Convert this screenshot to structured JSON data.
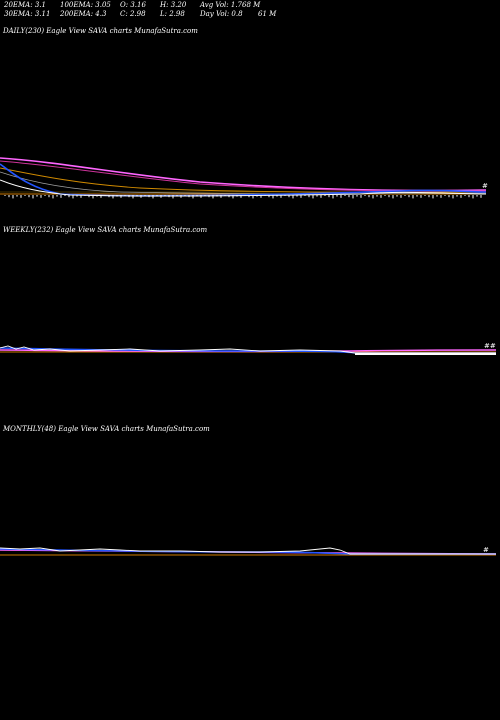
{
  "header": {
    "ema20": "20EMA: 3.1",
    "ema100": "100EMA: 3.05",
    "open": "O: 3.16",
    "high": "H: 3.20",
    "avg_vol": "Avg Vol: 1.768  M",
    "ema30": "30EMA: 3.11",
    "ema200": "200EMA: 4.3",
    "close": "C: 2.98",
    "low": "L: 2.98",
    "day_vol": "Day Vol: 0.8",
    "day_vol_unit": "61 M"
  },
  "panels": {
    "daily": {
      "title": "DAILY(230) Eagle   View  SAVA charts MunafaSutra.com"
    },
    "weekly": {
      "title": "WEEKLY(232) Eagle   View  SAVA charts MunafaSutra.com"
    },
    "monthly": {
      "title": "MONTHLY(48) Eagle   View  SAVA charts MunafaSutra.com"
    }
  },
  "colors": {
    "background": "#000000",
    "price": "#ffffff",
    "ema_short": "#2255ff",
    "ema_long": "#ff66ff",
    "ema_mid": "#d08a00",
    "baseline": "#d07a00",
    "volume": "#ffffff"
  },
  "chart_data": [
    {
      "type": "line",
      "title": "DAILY(230) Eagle   View  SAVA charts MunafaSutra.com",
      "series": [
        {
          "values": [
            40,
            37,
            33,
            30,
            26,
            22,
            19,
            16,
            14,
            12,
            10,
            9,
            8,
            8,
            7,
            7,
            6,
            6,
            5,
            5,
            5,
            4,
            4,
            4,
            4,
            3,
            3,
            3,
            3,
            2.98
          ]
        },
        {
          "values": [
            44,
            42,
            40,
            38,
            36,
            34,
            32,
            30,
            28,
            26,
            24,
            22,
            20,
            18,
            16,
            14,
            12,
            11,
            10,
            9,
            8,
            7,
            7,
            6,
            6,
            5,
            5,
            5,
            4.5,
            4.3
          ]
        },
        {
          "values": [
            30,
            28,
            25,
            22,
            19,
            16,
            14,
            12,
            10,
            9,
            8,
            7,
            6.5,
            6,
            5.5,
            5,
            4.8,
            4.6,
            4.4,
            4.2,
            4,
            3.8,
            3.6,
            3.5,
            3.4,
            3.3,
            3.2,
            3.15,
            3.1,
            3.1
          ]
        }
      ]
    },
    {
      "type": "line",
      "title": "WEEKLY(232) Eagle   View  SAVA charts MunafaSutra.com",
      "series": [
        {
          "values": [
            6,
            5,
            7,
            4,
            5,
            4,
            3,
            5,
            4,
            3,
            6,
            5,
            4,
            3,
            4,
            5,
            4,
            3,
            3,
            4,
            3,
            3,
            2,
            3,
            3,
            2,
            3,
            3,
            3,
            2.98
          ]
        }
      ]
    },
    {
      "type": "line",
      "title": "MONTHLY(48) Eagle   View  SAVA charts MunafaSutra.com",
      "series": [
        {
          "values": [
            9,
            10,
            8,
            7,
            9,
            8,
            7,
            8,
            9,
            7,
            6,
            7,
            8,
            10,
            7,
            6,
            5,
            5,
            4,
            4,
            3,
            3,
            3,
            3,
            3,
            3,
            3,
            2.98
          ]
        }
      ]
    }
  ]
}
